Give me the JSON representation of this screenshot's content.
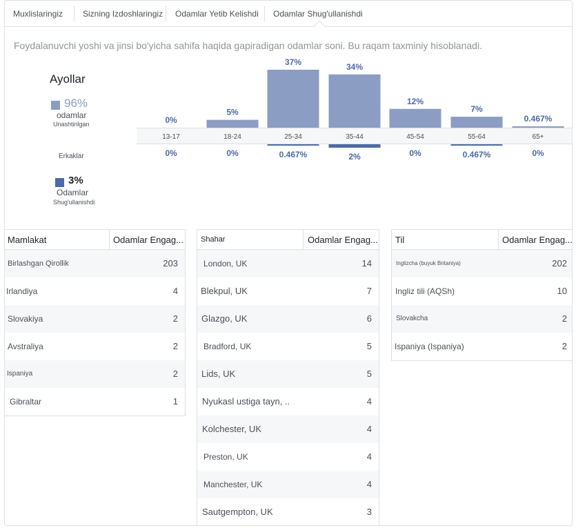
{
  "tabs": [
    {
      "label": "Muxlislaringiz"
    },
    {
      "label": "Sizning Izdoshlaringiz"
    },
    {
      "label": "Odamlar Yetib Kelishdi"
    },
    {
      "label": "Odamlar Shug'ullanishdi"
    }
  ],
  "description": "Foydalanuvchi yoshi va jinsi bo'yicha sahifa haqida gapiradigan odamlar soni. Bu raqam taxminiy hisoblanadi.",
  "women": {
    "title": "Ayollar",
    "percent": "96%",
    "unit": "odamlar",
    "sub": "Unashtirilgan",
    "color": "#8b9dc3"
  },
  "men": {
    "title": "Erkaklar",
    "percent": "3%",
    "unit": "Odamlar",
    "sub": "Shug'ullanishdi",
    "color": "#4b6aa6"
  },
  "chart_data": {
    "type": "bar",
    "categories": [
      "13-17",
      "18-24",
      "25-34",
      "35-44",
      "45-54",
      "55-64",
      "65+"
    ],
    "series": [
      {
        "name": "Ayollar",
        "values": [
          0,
          5,
          37,
          34,
          12,
          7,
          0.467
        ],
        "labels": [
          "0%",
          "5%",
          "37%",
          "34%",
          "12%",
          "7%",
          "0.467%"
        ]
      },
      {
        "name": "Erkaklar",
        "values": [
          0,
          0,
          0.467,
          2,
          0,
          0.467,
          0
        ],
        "labels": [
          "0%",
          "0%",
          "0.467%",
          "2%",
          "0%",
          "0.467%",
          "0%"
        ]
      }
    ],
    "colors": {
      "women": "#8b9dc3",
      "men": "#4b6aa6"
    }
  },
  "tables": {
    "country": {
      "col1": "Mamlakat",
      "col2": "Odamlar Engag...",
      "rows": [
        {
          "name": "Birlashgan Qirollik",
          "value": "203"
        },
        {
          "name": "Irlandiya",
          "value": "4"
        },
        {
          "name": "Slovakiya",
          "value": "2"
        },
        {
          "name": "Avstraliya",
          "value": "2"
        },
        {
          "name": "Ispaniya",
          "value": "2"
        },
        {
          "name": "Gibraltar",
          "value": "1"
        }
      ]
    },
    "city": {
      "col1": "Shahar",
      "col2": "Odamlar Engag...",
      "rows": [
        {
          "name": "London, UK",
          "value": "14"
        },
        {
          "name": "Blekpul, UK",
          "value": "7"
        },
        {
          "name": "Glazgo, UK",
          "value": "6"
        },
        {
          "name": "Bradford, UK",
          "value": "5"
        },
        {
          "name": "Lids, UK",
          "value": "5"
        },
        {
          "name": "Nyukasl ustiga tayn,  ..",
          "value": "4"
        },
        {
          "name": "Kolchester, UK",
          "value": "4"
        },
        {
          "name": "Preston, UK",
          "value": "4"
        },
        {
          "name": "Manchester, UK",
          "value": "4"
        },
        {
          "name": "Sautgempton, UK",
          "value": "3"
        }
      ]
    },
    "language": {
      "col1": "Til",
      "col2": "Odamlar Engag...",
      "rows": [
        {
          "name": "Inglizcha (buyuk Britaniya)",
          "value": "202"
        },
        {
          "name": "Ingliz tili (AQSh)",
          "value": "10"
        },
        {
          "name": "Slovakcha",
          "value": "2"
        },
        {
          "name": "Ispaniya (Ispaniya)",
          "value": "2"
        }
      ]
    }
  }
}
